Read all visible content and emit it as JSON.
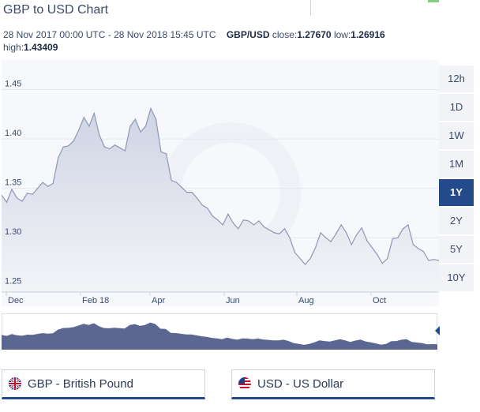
{
  "title": "GBP to USD Chart",
  "meta": {
    "range": "28 Nov 2017 00:00 UTC - 28 Nov 2018 15:45 UTC",
    "pair": "GBP/USD",
    "close_label": "close:",
    "close_value": "1.27670",
    "low_label": "low:",
    "low_value": "1.26916",
    "high_label": "high:",
    "high_value": "1.43409"
  },
  "timeframes": [
    "12h",
    "1D",
    "1W",
    "1M",
    "1Y",
    "2Y",
    "5Y",
    "10Y"
  ],
  "active_timeframe": "1Y",
  "currencies": [
    {
      "flag": "uk-flag-icon",
      "label": "GBP - British Pound"
    },
    {
      "flag": "us-flag-icon",
      "label": "USD - US Dollar"
    }
  ],
  "colors": {
    "accent": "#234a8a",
    "line": "#8e97b4",
    "nav_fill": "#5b6790"
  },
  "chart_data": {
    "type": "area",
    "series": [
      {
        "values": [
          1.343,
          1.336,
          1.349,
          1.34,
          1.337,
          1.345,
          1.344,
          1.35,
          1.356,
          1.352,
          1.355,
          1.381,
          1.392,
          1.393,
          1.398,
          1.409,
          1.422,
          1.413,
          1.426,
          1.404,
          1.392,
          1.39,
          1.394,
          1.391,
          1.388,
          1.413,
          1.42,
          1.407,
          1.413,
          1.431,
          1.42,
          1.387,
          1.385,
          1.358,
          1.356,
          1.351,
          1.346,
          1.346,
          1.34,
          1.333,
          1.33,
          1.322,
          1.318,
          1.313,
          1.324,
          1.315,
          1.309,
          1.318,
          1.317,
          1.313,
          1.317,
          1.311,
          1.308,
          1.305,
          1.304,
          1.309,
          1.3,
          1.285,
          1.279,
          1.273,
          1.279,
          1.29,
          1.305,
          1.3,
          1.296,
          1.304,
          1.313,
          1.305,
          1.293,
          1.303,
          1.31,
          1.297,
          1.29,
          1.283,
          1.274,
          1.279,
          1.299,
          1.3,
          1.309,
          1.313,
          1.293,
          1.289,
          1.286,
          1.277,
          1.278,
          1.277
        ]
      }
    ],
    "x_labels": [
      "Dec",
      "Feb 18",
      "Apr",
      "Jun",
      "Aug",
      "Oct"
    ],
    "y_ticks": [
      "1.25",
      "1.30",
      "1.35",
      "1.40",
      "1.45"
    ],
    "ylim": [
      1.245,
      1.48
    ],
    "grid": "horizontal"
  }
}
